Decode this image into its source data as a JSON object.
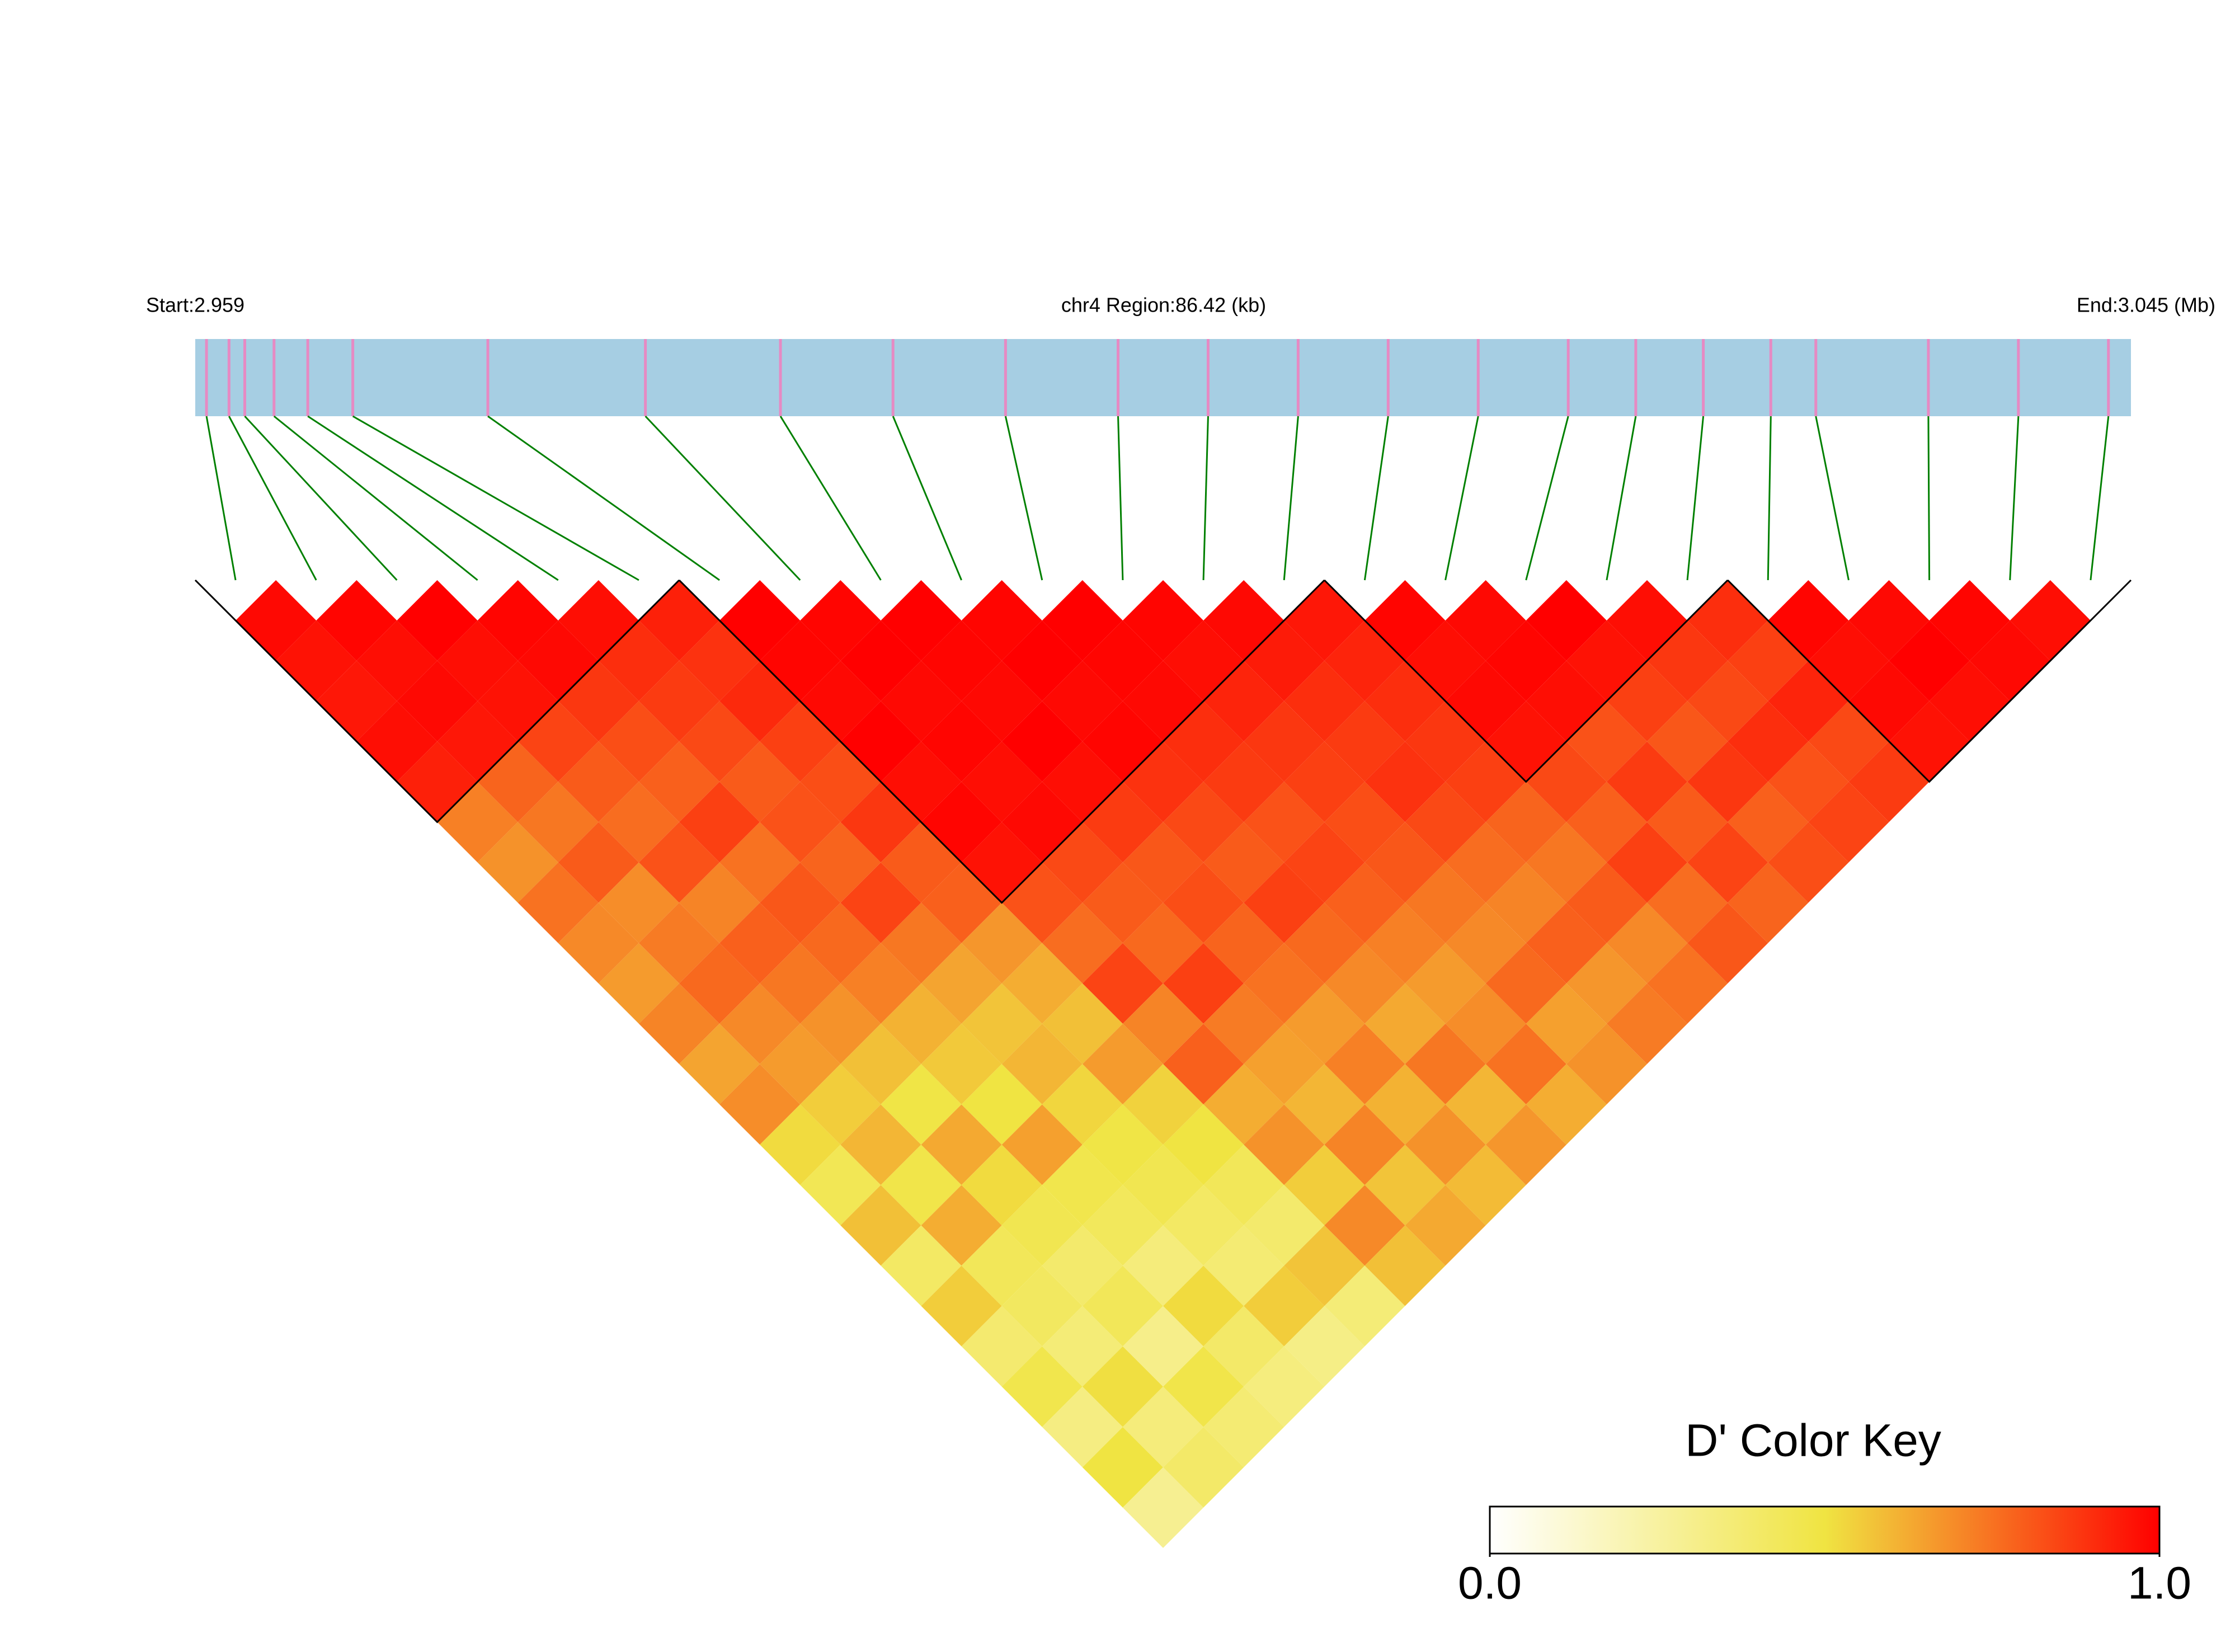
{
  "chart_data": {
    "type": "heatmap",
    "start_label": "Start:2.959",
    "region_label": "chr4 Region:86.42 (kb)",
    "end_label": "End:3.045 (Mb)",
    "xlim": [
      2.959,
      3.045
    ],
    "snp_positions": [
      2.9595,
      2.9605,
      2.9612,
      2.9625,
      2.964,
      2.966,
      2.972,
      2.979,
      2.985,
      2.99,
      2.995,
      3.0,
      3.004,
      3.008,
      3.012,
      3.016,
      3.02,
      3.023,
      3.026,
      3.029,
      3.031,
      3.036,
      3.04,
      3.044
    ],
    "bar_color": "#a6cee3",
    "snp_color": "#e68ac3",
    "link_color": "#008000",
    "block_color": "#000000",
    "blocks": [
      [
        0,
        5
      ],
      [
        6,
        13
      ],
      [
        14,
        18
      ],
      [
        19,
        23
      ]
    ],
    "matrix": [
      [
        0.98,
        0.96,
        0.95,
        0.97,
        0.93,
        0.72,
        0.68,
        0.75,
        0.7,
        0.66,
        0.71,
        0.64,
        0.69,
        0.52,
        0.45,
        0.58,
        0.41,
        0.55,
        0.38,
        0.47,
        0.33,
        0.5,
        0.29
      ],
      [
        0.99,
        0.97,
        0.98,
        0.95,
        0.78,
        0.74,
        0.8,
        0.69,
        0.73,
        0.77,
        0.7,
        0.66,
        0.55,
        0.6,
        0.48,
        0.62,
        0.44,
        0.42,
        0.36,
        0.51,
        0.35,
        0.4
      ],
      [
        1.0,
        0.97,
        0.96,
        0.85,
        0.8,
        0.76,
        0.82,
        0.71,
        0.79,
        0.74,
        0.68,
        0.58,
        0.49,
        0.63,
        0.52,
        0.46,
        0.39,
        0.44,
        0.31,
        0.48,
        0.37
      ],
      [
        0.99,
        0.98,
        0.88,
        0.83,
        0.79,
        0.86,
        0.75,
        0.81,
        0.77,
        0.72,
        0.61,
        0.56,
        0.5,
        0.65,
        0.47,
        0.43,
        0.35,
        0.52,
        0.4,
        0.34
      ],
      [
        0.97,
        0.9,
        0.87,
        0.84,
        0.8,
        0.82,
        0.78,
        0.85,
        0.74,
        0.64,
        0.57,
        0.6,
        0.53,
        0.49,
        0.46,
        0.41,
        0.37,
        0.55,
        0.32
      ],
      [
        0.93,
        0.89,
        0.91,
        0.86,
        0.83,
        0.88,
        0.8,
        0.79,
        0.67,
        0.62,
        0.58,
        0.66,
        0.54,
        0.5,
        0.44,
        0.39,
        0.57,
        0.36
      ],
      [
        1.0,
        0.99,
        0.98,
        1.0,
        0.97,
        0.99,
        0.96,
        0.82,
        0.76,
        0.85,
        0.71,
        0.79,
        0.62,
        0.68,
        0.55,
        0.7,
        0.58
      ],
      [
        0.99,
        1.0,
        0.98,
        0.99,
        0.97,
        0.98,
        0.84,
        0.8,
        0.77,
        0.86,
        0.73,
        0.65,
        0.6,
        0.71,
        0.57,
        0.63
      ],
      [
        1.0,
        0.99,
        0.98,
        1.0,
        0.97,
        0.87,
        0.81,
        0.83,
        0.78,
        0.75,
        0.66,
        0.72,
        0.61,
        0.68,
        0.59
      ],
      [
        0.99,
        1.0,
        0.98,
        0.99,
        0.89,
        0.84,
        0.8,
        0.86,
        0.77,
        0.7,
        0.63,
        0.74,
        0.6,
        0.67
      ],
      [
        1.0,
        0.99,
        0.98,
        0.9,
        0.87,
        0.82,
        0.85,
        0.79,
        0.72,
        0.66,
        0.69,
        0.75,
        0.62
      ],
      [
        0.99,
        0.97,
        0.92,
        0.88,
        0.86,
        0.83,
        0.81,
        0.74,
        0.7,
        0.77,
        0.65,
        0.68
      ],
      [
        0.98,
        0.94,
        0.9,
        0.87,
        0.89,
        0.84,
        0.76,
        0.71,
        0.79,
        0.67,
        0.73
      ],
      [
        0.95,
        0.92,
        0.9,
        0.88,
        0.86,
        0.78,
        0.74,
        0.8,
        0.7,
        0.75
      ],
      [
        0.99,
        0.97,
        0.98,
        0.96,
        0.84,
        0.79,
        0.86,
        0.76,
        0.81
      ],
      [
        0.98,
        0.99,
        0.97,
        0.82,
        0.87,
        0.8,
        0.85,
        0.78
      ],
      [
        1.0,
        0.96,
        0.86,
        0.81,
        0.88,
        0.79,
        0.83
      ],
      [
        0.97,
        0.88,
        0.84,
        0.9,
        0.82,
        0.85
      ],
      [
        0.9,
        0.86,
        0.92,
        0.84,
        0.87
      ],
      [
        0.99,
        0.97,
        0.98,
        0.96
      ],
      [
        0.98,
        1.0,
        0.97
      ],
      [
        0.99,
        0.98
      ],
      [
        0.97
      ]
    ],
    "colorbar": {
      "title": "D' Color Key",
      "lim": [
        0,
        1
      ],
      "ticks": [
        {
          "value": 0,
          "label": "0.0"
        },
        {
          "value": 1,
          "label": "1.0"
        }
      ],
      "colors": [
        "#ffffff",
        "#f0e442",
        "#ff0000"
      ]
    }
  }
}
